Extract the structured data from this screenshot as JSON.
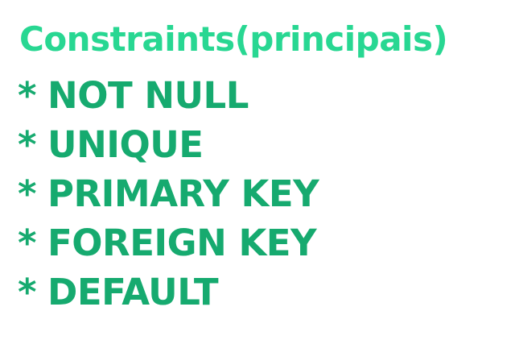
{
  "title": "Constraints(principais)",
  "bullet": "*",
  "items": [
    "NOT NULL",
    "UNIQUE",
    "PRIMARY KEY",
    "FOREIGN KEY",
    "DEFAULT"
  ],
  "colors": {
    "title": "#28d792",
    "items": "#16aa6f",
    "background": "#ffffff"
  }
}
